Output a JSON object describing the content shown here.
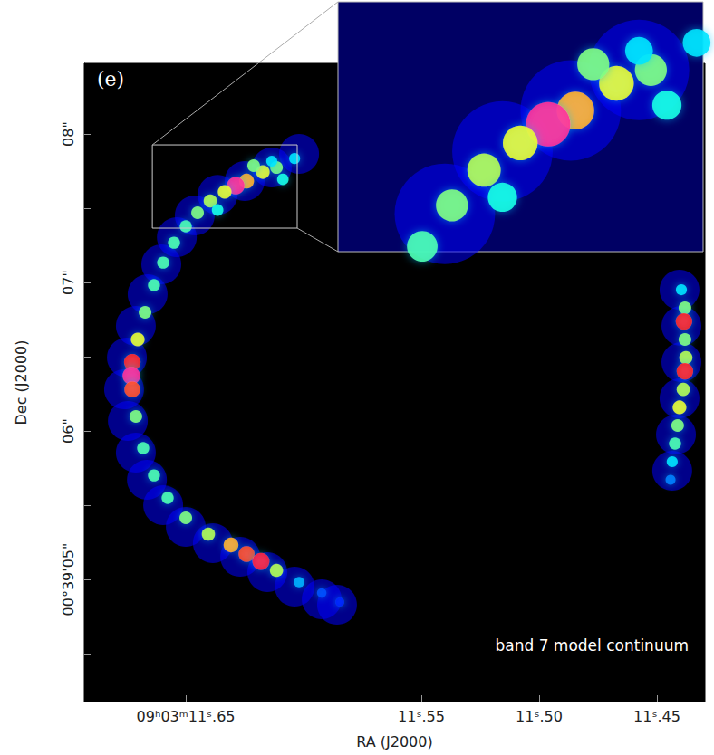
{
  "chart_data": {
    "type": "image",
    "panel": "(e)",
    "annotation": "band 7 model continuum",
    "x_label": "RA (J2000)",
    "y_label": "Dec (J2000)",
    "xlim": [
      11.6931,
      11.4296
    ],
    "ylim": [
      4.177,
      8.476
    ],
    "xticks": [
      {
        "value": 11.65,
        "label": "09ʰ03ᵐ11ˢ.65"
      },
      {
        "value": 11.55,
        "label": "11ˢ.55"
      },
      {
        "value": 11.5,
        "label": "11ˢ.50"
      },
      {
        "value": 11.45,
        "label": "11ˢ.45"
      }
    ],
    "x_minor_ticks": [
      11.6
    ],
    "yticks": [
      {
        "value": 8,
        "label": "08\""
      },
      {
        "value": 7,
        "label": "07\""
      },
      {
        "value": 6,
        "label": "06\""
      },
      {
        "value": 5,
        "label": "00°39'05\""
      }
    ],
    "y_minor_ticks": [
      7.5,
      6.5,
      5.5,
      4.5
    ],
    "color": "jet",
    "clim": [
      0,
      1
    ],
    "inset": {
      "xlim": [
        11.6642,
        11.6027
      ],
      "ylim": [
        7.366,
        7.927
      ]
    },
    "emission": [
      [
        11.6038,
        7.835,
        0.35
      ],
      [
        11.6115,
        7.774,
        0.5
      ],
      [
        11.6173,
        7.744,
        0.6
      ],
      [
        11.6242,
        7.683,
        0.7
      ],
      [
        11.6288,
        7.652,
        0.95
      ],
      [
        11.6335,
        7.61,
        0.6
      ],
      [
        11.6396,
        7.549,
        0.55
      ],
      [
        11.645,
        7.47,
        0.5
      ],
      [
        11.65,
        7.378,
        0.45
      ],
      [
        11.655,
        7.268,
        0.45
      ],
      [
        11.6596,
        7.134,
        0.45
      ],
      [
        11.6635,
        6.982,
        0.45
      ],
      [
        11.6673,
        6.799,
        0.5
      ],
      [
        11.6704,
        6.616,
        0.6
      ],
      [
        11.6727,
        6.463,
        0.85
      ],
      [
        11.6731,
        6.372,
        0.95
      ],
      [
        11.6727,
        6.28,
        0.8
      ],
      [
        11.6712,
        6.098,
        0.5
      ],
      [
        11.6681,
        5.884,
        0.45
      ],
      [
        11.6635,
        5.701,
        0.45
      ],
      [
        11.6577,
        5.549,
        0.45
      ],
      [
        11.65,
        5.415,
        0.5
      ],
      [
        11.6404,
        5.305,
        0.55
      ],
      [
        11.6308,
        5.232,
        0.7
      ],
      [
        11.6242,
        5.171,
        0.8
      ],
      [
        11.6181,
        5.122,
        0.9
      ],
      [
        11.6115,
        5.061,
        0.55
      ],
      [
        11.6019,
        4.982,
        0.3
      ],
      [
        11.5923,
        4.909,
        0.2
      ],
      [
        11.5846,
        4.848,
        0.15
      ],
      [
        11.6212,
        7.787,
        0.5
      ],
      [
        11.6088,
        7.695,
        0.4
      ],
      [
        11.6365,
        7.488,
        0.4
      ],
      [
        11.6135,
        7.817,
        0.35
      ],
      [
        11.4396,
        6.951,
        0.35
      ],
      [
        11.4381,
        6.829,
        0.5
      ],
      [
        11.4385,
        6.738,
        0.85
      ],
      [
        11.4381,
        6.616,
        0.5
      ],
      [
        11.4377,
        6.494,
        0.55
      ],
      [
        11.4381,
        6.402,
        0.85
      ],
      [
        11.4388,
        6.28,
        0.55
      ],
      [
        11.4404,
        6.159,
        0.6
      ],
      [
        11.4412,
        6.037,
        0.5
      ],
      [
        11.4423,
        5.915,
        0.45
      ],
      [
        11.4435,
        5.793,
        0.35
      ],
      [
        11.4442,
        5.671,
        0.25
      ]
    ],
    "halo": [
      [
        11.6019,
        7.866,
        0.12
      ],
      [
        11.6135,
        7.774,
        0.12
      ],
      [
        11.625,
        7.683,
        0.12
      ],
      [
        11.6365,
        7.591,
        0.12
      ],
      [
        11.6462,
        7.451,
        0.12
      ],
      [
        11.6538,
        7.305,
        0.12
      ],
      [
        11.6604,
        7.122,
        0.12
      ],
      [
        11.6662,
        6.921,
        0.12
      ],
      [
        11.6712,
        6.707,
        0.12
      ],
      [
        11.675,
        6.494,
        0.12
      ],
      [
        11.6762,
        6.28,
        0.12
      ],
      [
        11.6746,
        6.067,
        0.12
      ],
      [
        11.6712,
        5.854,
        0.12
      ],
      [
        11.6665,
        5.671,
        0.12
      ],
      [
        11.6596,
        5.5,
        0.12
      ],
      [
        11.65,
        5.354,
        0.12
      ],
      [
        11.6385,
        5.244,
        0.12
      ],
      [
        11.6269,
        5.152,
        0.12
      ],
      [
        11.6154,
        5.049,
        0.12
      ],
      [
        11.6038,
        4.951,
        0.12
      ],
      [
        11.5923,
        4.866,
        0.12
      ],
      [
        11.5858,
        4.829,
        0.12
      ],
      [
        11.4404,
        6.951,
        0.12
      ],
      [
        11.4396,
        6.707,
        0.12
      ],
      [
        11.4396,
        6.463,
        0.12
      ],
      [
        11.4404,
        6.22,
        0.12
      ],
      [
        11.4419,
        5.976,
        0.12
      ],
      [
        11.4435,
        5.732,
        0.12
      ]
    ]
  }
}
